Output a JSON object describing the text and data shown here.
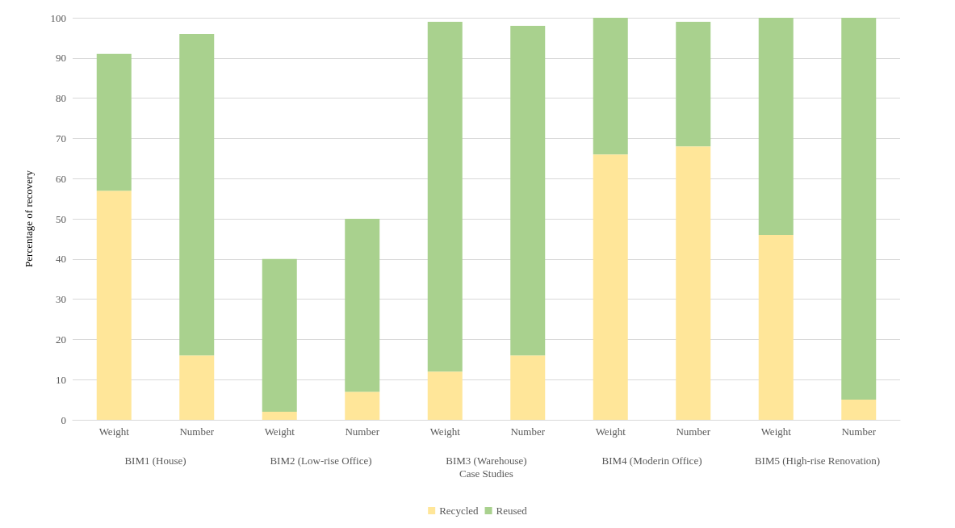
{
  "chart_data": {
    "type": "bar",
    "stacked": true,
    "xlabel": "Case Studies",
    "ylabel": "Percentage of recovery",
    "categories": [
      "Weight",
      "Number",
      "Weight",
      "Number",
      "Weight",
      "Number",
      "Weight",
      "Number",
      "Weight",
      "Number"
    ],
    "series": [
      {
        "name": "Recycled",
        "color": "#ffe699",
        "values": [
          57,
          16,
          2,
          7,
          12,
          16,
          66,
          68,
          46,
          5
        ]
      },
      {
        "name": "Reused",
        "color": "#a9d18e",
        "values": [
          34,
          80,
          38,
          43,
          87,
          82,
          34,
          31,
          54,
          95
        ]
      }
    ],
    "annotations": [
      "BIM1 (House)",
      "BIM2 (Low-rise Office)",
      "BIM3 (Warehouse)",
      "BIM4 (Moderin Office)",
      "BIM5 (High-rise Renovation)"
    ],
    "ylim": [
      0,
      100
    ],
    "yticks": [
      0,
      10,
      20,
      30,
      40,
      50,
      60,
      70,
      80,
      90,
      100
    ],
    "grid": "y",
    "legend": "bottom"
  }
}
